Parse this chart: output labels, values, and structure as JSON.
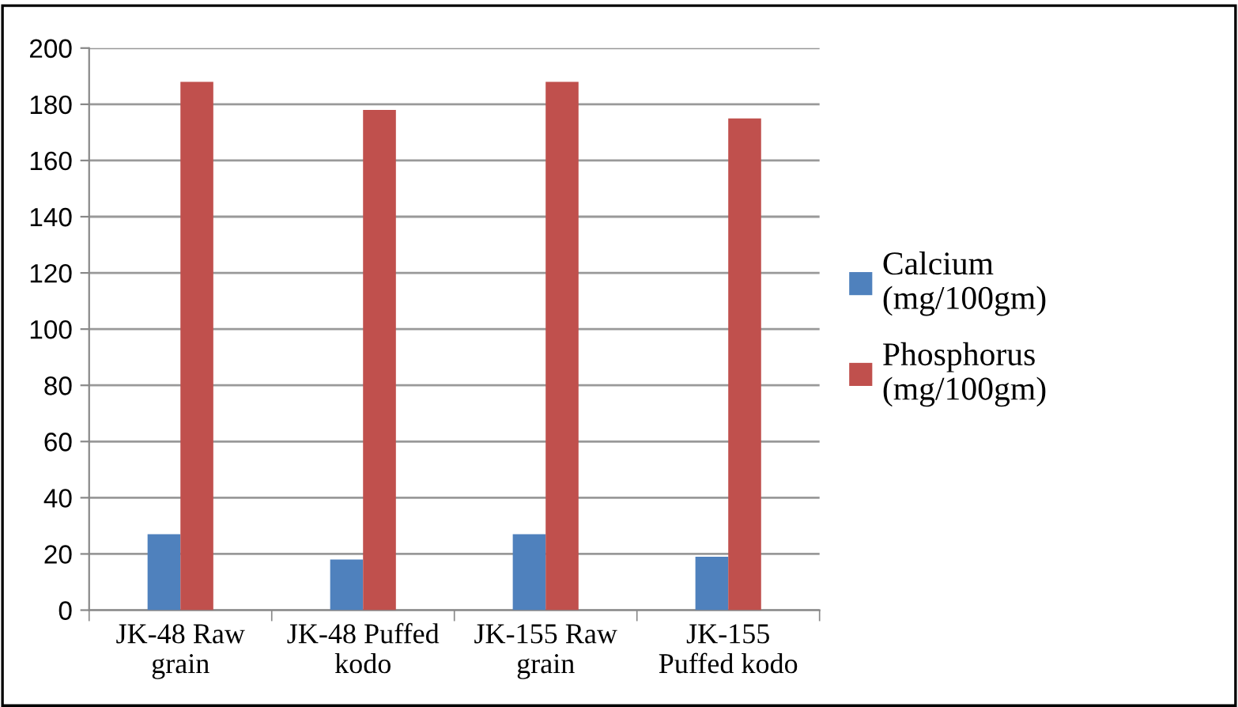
{
  "chart_data": {
    "type": "bar",
    "categories": [
      "JK-48 Raw\ngrain",
      "JK-48 Puffed\nkodo",
      "JK-155 Raw\ngrain",
      "JK-155\nPuffed kodo"
    ],
    "series": [
      {
        "name": "Calcium\n(mg/100gm)",
        "color": "#4f81bd",
        "values": [
          27,
          18,
          27,
          19
        ]
      },
      {
        "name": "Phosphorus\n(mg/100gm)",
        "color": "#c0504d",
        "values": [
          188,
          178,
          188,
          175
        ]
      }
    ],
    "ylim": [
      0,
      200
    ],
    "yticks": [
      0,
      20,
      40,
      60,
      80,
      100,
      120,
      140,
      160,
      180,
      200
    ],
    "grid": "y",
    "legend": "right"
  }
}
